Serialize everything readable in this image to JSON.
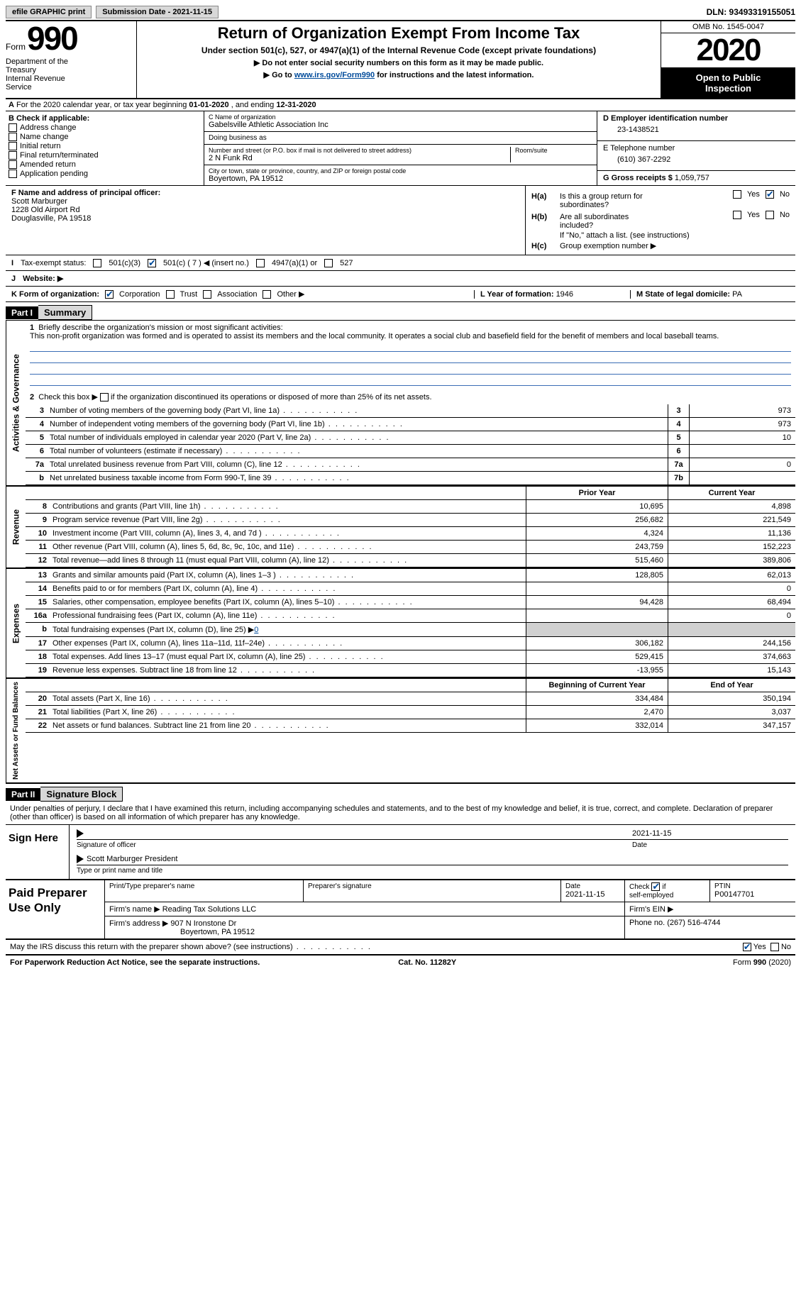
{
  "topbar": {
    "efile_label": "efile GRAPHIC print",
    "submission_label": "Submission Date - 2021-11-15",
    "dln_label": "DLN: 93493319155051"
  },
  "header": {
    "form_word": "Form",
    "form_number": "990",
    "dept1": "Department of the",
    "dept2": "Treasury",
    "dept3": "Internal Revenue",
    "dept4": "Service",
    "title": "Return of Organization Exempt From Income Tax",
    "subtitle": "Under section 501(c), 527, or 4947(a)(1) of the Internal Revenue Code (except private foundations)",
    "instr1": "▶ Do not enter social security numbers on this form as it may be made public.",
    "instr2_pre": "▶ Go to ",
    "instr2_link": "www.irs.gov/Form990",
    "instr2_post": " for instructions and the latest information.",
    "omb": "OMB No. 1545-0047",
    "year": "2020",
    "open1": "Open to Public",
    "open2": "Inspection"
  },
  "rowA": {
    "prefix": "A",
    "text_pre": "For the 2020 calendar year, or tax year beginning ",
    "begin": "01-01-2020",
    "mid": "  , and ending ",
    "end": "12-31-2020"
  },
  "boxB": {
    "label": "B Check if applicable:",
    "opts": [
      "Address change",
      "Name change",
      "Initial return",
      "Final return/terminated",
      "Amended return",
      "Application pending"
    ],
    "pending_note": ""
  },
  "boxC": {
    "name_lbl": "C Name of organization",
    "name": "Gabelsville Athletic Association Inc",
    "dba_lbl": "Doing business as",
    "dba": "",
    "addr_lbl": "Number and street (or P.O. box if mail is not delivered to street address)",
    "room_lbl": "Room/suite",
    "addr": "2 N Funk Rd",
    "city_lbl": "City or town, state or province, country, and ZIP or foreign postal code",
    "city": "Boyertown, PA  19512"
  },
  "boxD": {
    "lbl": "D Employer identification number",
    "val": "23-1438521"
  },
  "boxE": {
    "lbl": "E Telephone number",
    "val": "(610) 367-2292"
  },
  "boxG": {
    "lbl": "G Gross receipts $",
    "val": " 1,059,757"
  },
  "boxF": {
    "lbl": "F  Name and address of principal officer:",
    "l1": "Scott Marburger",
    "l2": "1228 Old Airport Rd",
    "l3": "Douglasville, PA  19518"
  },
  "boxH": {
    "a_lbl": "H(a)",
    "a_txt": "Is this a group return for",
    "a_txt2": "subordinates?",
    "b_lbl": "H(b)",
    "b_txt": "Are all subordinates",
    "b_txt2": "included?",
    "b_note": "If \"No,\" attach a list. (see instructions)",
    "c_lbl": "H(c)",
    "c_txt": "Group exemption number ▶",
    "yes": "Yes",
    "no": "No"
  },
  "rowI": {
    "lbl": "I",
    "txt": "Tax-exempt status:",
    "o1": "501(c)(3)",
    "o2": "501(c) ( 7 ) ◀ (insert no.)",
    "o3": "4947(a)(1) or",
    "o4": "527"
  },
  "rowJ": {
    "lbl": "J",
    "txt": "Website: ▶"
  },
  "rowK": {
    "lbl": "K Form of organization:",
    "o1": "Corporation",
    "o2": "Trust",
    "o3": "Association",
    "o4": "Other ▶"
  },
  "rowL": {
    "lbl": "L Year of formation: ",
    "val": "1946"
  },
  "rowM": {
    "lbl": "M State of legal domicile: ",
    "val": "PA"
  },
  "part1": {
    "hdr": "Part I",
    "title": "Summary",
    "q1_num": "1",
    "q1_txt": "Briefly describe the organization's mission or most significant activities:",
    "q1_desc": "This non-profit organization was formed and is operated to assist its members and the local community. It operates a social club and basefield field for the benefit of members and local baseball teams.",
    "q2_num": "2",
    "q2_txt_a": "Check this box ▶ ",
    "q2_txt_b": " if the organization discontinued its operations or disposed of more than 25% of its net assets.",
    "lines_gov": [
      {
        "n": "3",
        "t": "Number of voting members of the governing body (Part VI, line 1a)",
        "box": "3",
        "v": "973"
      },
      {
        "n": "4",
        "t": "Number of independent voting members of the governing body (Part VI, line 1b)",
        "box": "4",
        "v": "973"
      },
      {
        "n": "5",
        "t": "Total number of individuals employed in calendar year 2020 (Part V, line 2a)",
        "box": "5",
        "v": "10"
      },
      {
        "n": "6",
        "t": "Total number of volunteers (estimate if necessary)",
        "box": "6",
        "v": ""
      },
      {
        "n": "7a",
        "t": "Total unrelated business revenue from Part VIII, column (C), line 12",
        "box": "7a",
        "v": "0"
      },
      {
        "n": "b",
        "t": "Net unrelated business taxable income from Form 990-T, line 39",
        "box": "7b",
        "v": ""
      }
    ],
    "col_prior": "Prior Year",
    "col_current": "Current Year",
    "revenue": [
      {
        "n": "8",
        "t": "Contributions and grants (Part VIII, line 1h)",
        "p": "10,695",
        "c": "4,898"
      },
      {
        "n": "9",
        "t": "Program service revenue (Part VIII, line 2g)",
        "p": "256,682",
        "c": "221,549"
      },
      {
        "n": "10",
        "t": "Investment income (Part VIII, column (A), lines 3, 4, and 7d )",
        "p": "4,324",
        "c": "11,136"
      },
      {
        "n": "11",
        "t": "Other revenue (Part VIII, column (A), lines 5, 6d, 8c, 9c, 10c, and 11e)",
        "p": "243,759",
        "c": "152,223"
      },
      {
        "n": "12",
        "t": "Total revenue—add lines 8 through 11 (must equal Part VIII, column (A), line 12)",
        "p": "515,460",
        "c": "389,806"
      }
    ],
    "expenses": [
      {
        "n": "13",
        "t": "Grants and similar amounts paid (Part IX, column (A), lines 1–3 )",
        "p": "128,805",
        "c": "62,013"
      },
      {
        "n": "14",
        "t": "Benefits paid to or for members (Part IX, column (A), line 4)",
        "p": "",
        "c": "0"
      },
      {
        "n": "15",
        "t": "Salaries, other compensation, employee benefits (Part IX, column (A), lines 5–10)",
        "p": "94,428",
        "c": "68,494"
      },
      {
        "n": "16a",
        "t": "Professional fundraising fees (Part IX, column (A), line 11e)",
        "p": "",
        "c": "0"
      },
      {
        "n": "b",
        "t": "Total fundraising expenses (Part IX, column (D), line 25) ▶",
        "p": "GRAY",
        "c": "GRAY",
        "extra": "0"
      },
      {
        "n": "17",
        "t": "Other expenses (Part IX, column (A), lines 11a–11d, 11f–24e)",
        "p": "306,182",
        "c": "244,156"
      },
      {
        "n": "18",
        "t": "Total expenses. Add lines 13–17 (must equal Part IX, column (A), line 25)",
        "p": "529,415",
        "c": "374,663"
      },
      {
        "n": "19",
        "t": "Revenue less expenses. Subtract line 18 from line 12",
        "p": "-13,955",
        "c": "15,143"
      }
    ],
    "col_begin": "Beginning of Current Year",
    "col_end": "End of Year",
    "netassets": [
      {
        "n": "20",
        "t": "Total assets (Part X, line 16)",
        "p": "334,484",
        "c": "350,194"
      },
      {
        "n": "21",
        "t": "Total liabilities (Part X, line 26)",
        "p": "2,470",
        "c": "3,037"
      },
      {
        "n": "22",
        "t": "Net assets or fund balances. Subtract line 21 from line 20",
        "p": "332,014",
        "c": "347,157"
      }
    ],
    "vtab_gov": "Activities & Governance",
    "vtab_rev": "Revenue",
    "vtab_exp": "Expenses",
    "vtab_net": "Net Assets or Fund Balances"
  },
  "part2": {
    "hdr": "Part II",
    "title": "Signature Block",
    "decl": "Under penalties of perjury, I declare that I have examined this return, including accompanying schedules and statements, and to the best of my knowledge and belief, it is true, correct, and complete. Declaration of preparer (other than officer) is based on all information of which preparer has any knowledge.",
    "sign_here": "Sign Here",
    "sig_of": "Signature of officer",
    "sig_date": "Date",
    "sig_date_val": "2021-11-15",
    "name_title": "Scott Marburger President",
    "name_title_lbl": "Type or print name and title",
    "paid_lbl": "Paid Preparer Use Only",
    "pp_name_lbl": "Print/Type preparer's name",
    "pp_sig_lbl": "Preparer's signature",
    "pp_date_lbl": "Date",
    "pp_date_val": "2021-11-15",
    "pp_check_lbl": "Check",
    "pp_check_if": "if",
    "pp_self": "self-employed",
    "pp_ptin_lbl": "PTIN",
    "pp_ptin": "P00147701",
    "firm_name_lbl": "Firm's name    ▶ ",
    "firm_name": "Reading Tax Solutions LLC",
    "firm_ein_lbl": "Firm's EIN ▶",
    "firm_addr_lbl": "Firm's address ▶ ",
    "firm_addr1": "907 N Ironstone Dr",
    "firm_addr2": "Boyertown, PA  19512",
    "firm_phone_lbl": "Phone no. ",
    "firm_phone": "(267) 516-4744",
    "may_irs": "May the IRS discuss this return with the preparer shown above? (see instructions)",
    "yes": "Yes",
    "no": "No"
  },
  "footer": {
    "l": "For Paperwork Reduction Act Notice, see the separate instructions.",
    "c": "Cat. No. 11282Y",
    "r": "Form 990 (2020)"
  }
}
